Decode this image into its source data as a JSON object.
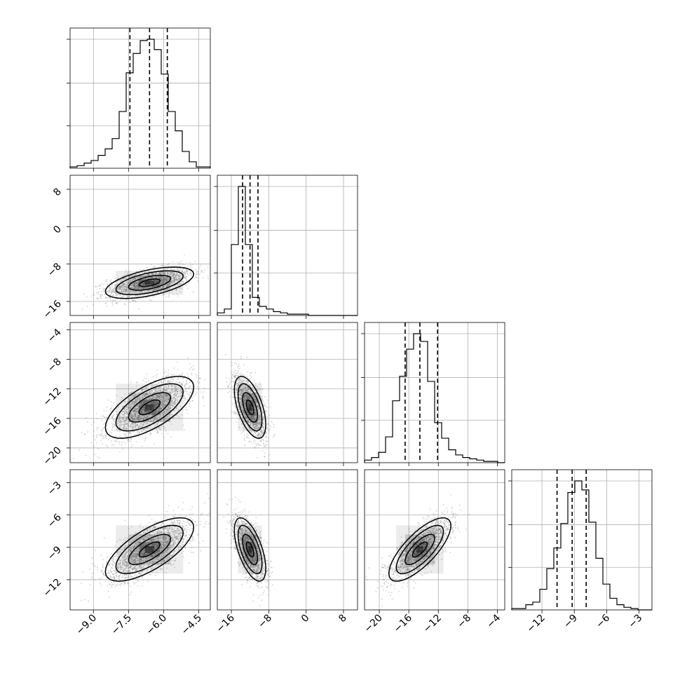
{
  "chart_data": {
    "type": "corner",
    "n_params": 4,
    "colors": {
      "line": "#000000",
      "grid": "#b0b0b0",
      "points": "#7f7f7f"
    },
    "grid": true,
    "params": [
      {
        "range": [
          -10.0,
          -4.0
        ],
        "ticks": [
          -9.0,
          -7.5,
          -6.0,
          -4.5
        ],
        "tick_labels": [
          "−9.0",
          "−7.5",
          "−6.0",
          "−4.5"
        ],
        "mean": -6.6,
        "sd": 0.9,
        "quantiles": [
          -7.44,
          -6.6,
          -5.84
        ]
      },
      {
        "range": [
          -19.0,
          11.0
        ],
        "ticks": [
          -16,
          -8,
          0,
          8
        ],
        "tick_labels": [
          "−16",
          "−8",
          "0",
          "8"
        ],
        "mean": -12.0,
        "sd": 1.6,
        "quantiles": [
          -13.6,
          -12.0,
          -10.3
        ]
      },
      {
        "range": [
          -22.0,
          -3.0
        ],
        "ticks": [
          -20,
          -16,
          -12,
          -8,
          -4
        ],
        "tick_labels": [
          "−20",
          "−16",
          "−12",
          "−8",
          "−4"
        ],
        "mean": -14.5,
        "sd": 2.0,
        "quantiles": [
          -16.5,
          -14.5,
          -12.1
        ]
      },
      {
        "range": [
          -14.8,
          -1.8
        ],
        "ticks": [
          -12,
          -9,
          -6,
          -3
        ],
        "tick_labels": [
          "−12",
          "−9",
          "−6",
          "−3"
        ],
        "mean": -9.2,
        "sd": 1.4,
        "quantiles": [
          -10.6,
          -9.2,
          -7.9
        ]
      }
    ],
    "hist_bins": [
      [
        0.01,
        0.02,
        0.04,
        0.06,
        0.1,
        0.15,
        0.23,
        0.44,
        0.74,
        0.89,
        0.99,
        1.0,
        0.92,
        0.73,
        0.44,
        0.29,
        0.13,
        0.05,
        0.01,
        0.01
      ],
      [
        0.02,
        0.05,
        0.55,
        1.0,
        0.55,
        0.14,
        0.07,
        0.05,
        0.03,
        0.02,
        0.01,
        0.01,
        0.01,
        0.0,
        0.0,
        0.0,
        0.0,
        0.0,
        0.0,
        0.0
      ],
      [
        0.02,
        0.04,
        0.08,
        0.2,
        0.48,
        0.67,
        0.88,
        1.0,
        0.94,
        0.63,
        0.31,
        0.19,
        0.1,
        0.06,
        0.04,
        0.03,
        0.02,
        0.01,
        0.01,
        0.0
      ],
      [
        0.01,
        0.01,
        0.04,
        0.06,
        0.16,
        0.32,
        0.48,
        0.67,
        0.91,
        1.0,
        0.93,
        0.68,
        0.4,
        0.2,
        0.09,
        0.04,
        0.02,
        0.01,
        0.0,
        0.0
      ]
    ],
    "correlations": [
      {
        "x": 0,
        "y": 1,
        "rho": 0.55
      },
      {
        "x": 0,
        "y": 2,
        "rho": 0.65
      },
      {
        "x": 1,
        "y": 2,
        "rho": -0.55
      },
      {
        "x": 0,
        "y": 3,
        "rho": 0.7
      },
      {
        "x": 1,
        "y": 3,
        "rho": -0.6
      },
      {
        "x": 2,
        "y": 3,
        "rho": 0.75
      }
    ]
  }
}
